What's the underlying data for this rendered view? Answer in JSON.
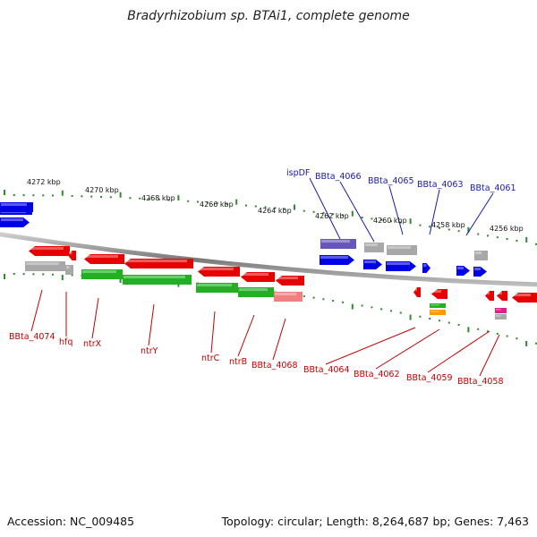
{
  "title": "Bradyrhizobium sp. BTAi1, complete genome",
  "accession": "Accession: NC_009485",
  "summary": "Topology: circular; Length: 8,264,687 bp; Genes: 7,463",
  "colors": {
    "backbone": "#8a8a8a",
    "tick": "#2e8b2e",
    "forward_label": "#1a1aa8",
    "reverse_label": "#c40000",
    "red": "#e60000",
    "blue": "#0000e6",
    "green": "#22b022",
    "gray": "#a8a8a8",
    "purple": "#6655bb",
    "salmon": "#f08080"
  },
  "kbp_labels": [
    "4272 kbp",
    "4270 kbp",
    "4268 kbp",
    "4266 kbp",
    "4264 kbp",
    "4262 kbp",
    "4260 kbp",
    "4258 kbp",
    "4256 kbp"
  ],
  "forward_gene_labels": [
    "ispDF",
    "BBta_4066",
    "BBta_4065",
    "BBta_4063",
    "BBta_4061"
  ],
  "reverse_gene_labels": [
    "BBta_4074",
    "hfq",
    "ntrX",
    "ntrY",
    "ntrC",
    "ntrB",
    "BBta_4068",
    "BBta_4064",
    "BBta_4062",
    "BBta_4059",
    "BBta_4058"
  ]
}
